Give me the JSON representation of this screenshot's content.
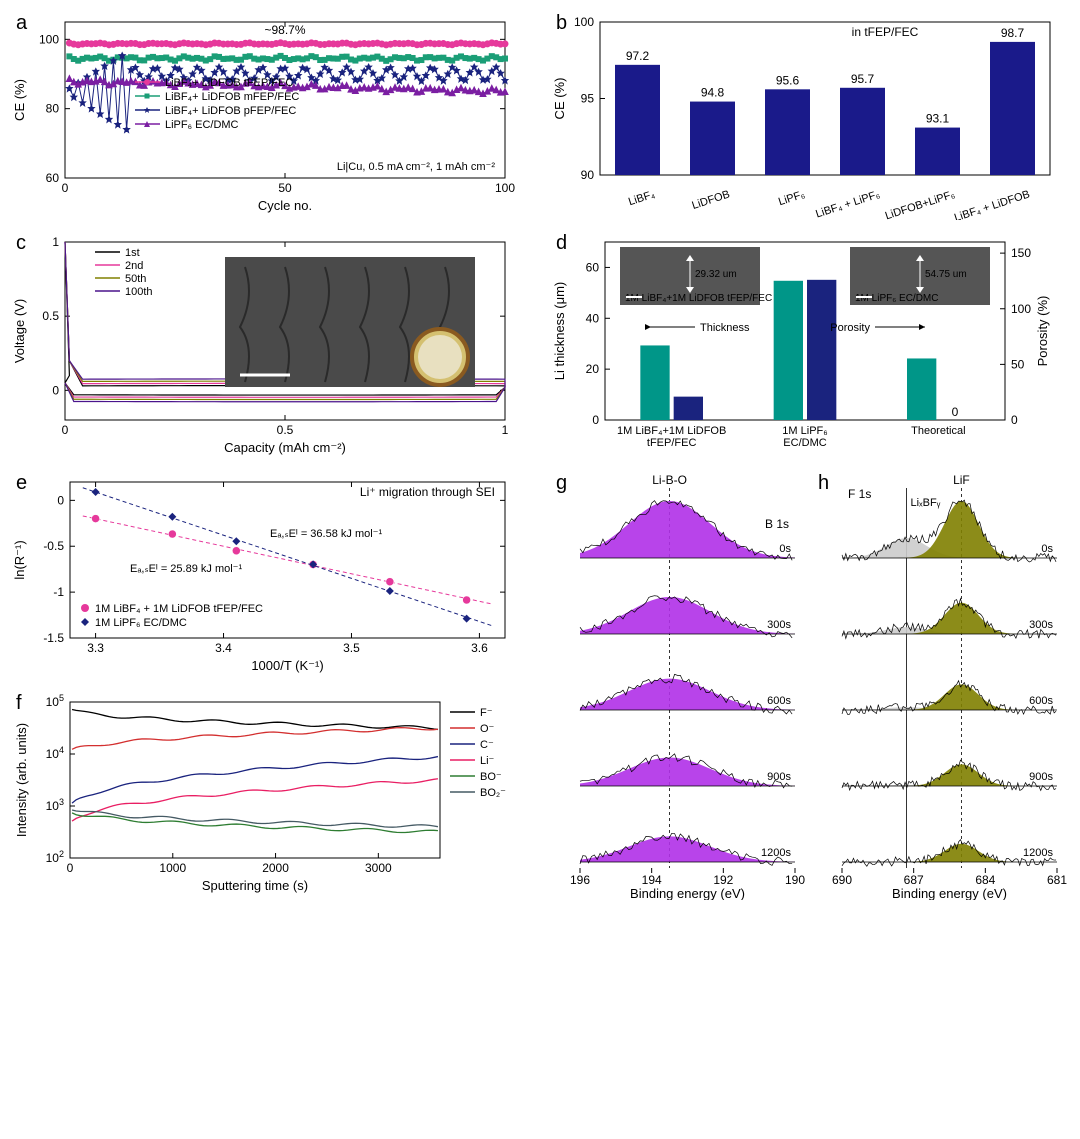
{
  "panels": {
    "a": {
      "label": "a",
      "xlabel": "Cycle no.",
      "ylabel": "CE (%)",
      "xlim": [
        0,
        100
      ],
      "xtick_step": 50,
      "ylim": [
        60,
        105
      ],
      "ytick_step": 20,
      "annotation": "~98.7%",
      "condition": "Li|Cu, 0.5 mA cm⁻², 1 mAh cm⁻²",
      "series": [
        {
          "name": "LiBF₄+ LiDFOB tFEP/FEC",
          "color": "#e6399b",
          "marker": "circle",
          "y_base": 98.7,
          "noise": 0.5
        },
        {
          "name": "LiBF₄+ LiDFOB mFEP/FEC",
          "color": "#1b9e77",
          "marker": "square",
          "y_base": 94.5,
          "noise": 1.2
        },
        {
          "name": "LiBF₄+ LiDFOB pFEP/FEC",
          "color": "#1a237e",
          "marker": "star",
          "y_base": 90,
          "noise": 8,
          "erratic": true
        },
        {
          "name": "LiPF₆ EC/DMC",
          "color": "#7b1fa2",
          "marker": "triangle",
          "y_base": 88,
          "noise": 1.5,
          "decline": true
        }
      ]
    },
    "b": {
      "label": "b",
      "ylabel": "CE (%)",
      "ylim": [
        90,
        100
      ],
      "ytick_step": 5,
      "title": "in tFEP/FEC",
      "bar_color": "#1a1a8a",
      "highlight_color": "#e6399b",
      "categories": [
        "LiBF₄",
        "LiDFOB",
        "LiPF₆",
        "LiBF₄ + LiPF₆",
        "LiDFOB+LiPF₆",
        "LiBF₄ + LiDFOB"
      ],
      "values": [
        97.2,
        94.8,
        95.6,
        95.7,
        93.1,
        98.7
      ],
      "highlight_index": 5
    },
    "c": {
      "label": "c",
      "xlabel": "Capacity (mAh cm⁻²)",
      "ylabel": "Voltage (V)",
      "xlim": [
        0.0,
        1.0
      ],
      "xtick_step": 0.5,
      "ylim": [
        -0.2,
        1.0
      ],
      "ytick_step": 0.5,
      "series": [
        {
          "name": "1st",
          "color": "#000000"
        },
        {
          "name": "2nd",
          "color": "#e6399b"
        },
        {
          "name": "50th",
          "color": "#808000"
        },
        {
          "name": "100th",
          "color": "#4a148c"
        }
      ]
    },
    "d": {
      "label": "d",
      "ylabel_left": "Li thickness (μm)",
      "ylabel_right": "Porosity (%)",
      "ylim_left": [
        0,
        70
      ],
      "ytick_left_step": 20,
      "ylim_right": [
        0,
        160
      ],
      "ytick_right_step": 50,
      "categories": [
        "1M LiBF₄+1M LiDFOB\ntFEP/FEC",
        "1M LiPF₆\nEC/DMC",
        "Theoretical"
      ],
      "thickness": [
        29.32,
        54.75,
        24.2
      ],
      "porosity": [
        21,
        126,
        0
      ],
      "thickness_color": "#009688",
      "porosity_color": "#1a237e",
      "arrows": {
        "left": "Thickness",
        "right": "Porosity"
      },
      "inset_left_label": "29.32 um",
      "inset_right_label": "54.75 um",
      "inset_left_caption": "1M LiBF₄+1M LiDFOB tFEP/FEC",
      "inset_right_caption": "1M LiPF₆ EC/DMC",
      "zero_label": "0"
    },
    "e": {
      "label": "e",
      "xlabel": "1000/T (K⁻¹)",
      "ylabel": "ln(R⁻¹)",
      "xlim": [
        3.28,
        3.62
      ],
      "xticks": [
        3.3,
        3.4,
        3.5,
        3.6
      ],
      "ylim": [
        -1.5,
        0.2
      ],
      "yticks": [
        -1.5,
        -1.0,
        -0.5,
        0.0
      ],
      "title": "Li⁺ migration through SEI",
      "series": [
        {
          "name": "1M LiBF₄ + 1M LiDFOB tFEP/FEC",
          "color": "#e6399b",
          "marker": "circle",
          "slope": -3.0,
          "intercept": 9.7,
          "ea_label": "Eₐ,ₛEᴵ = 25.89 kJ mol⁻¹"
        },
        {
          "name": "1M LiPF₆ EC/DMC",
          "color": "#1a237e",
          "marker": "diamond",
          "slope": -4.7,
          "intercept": 15.6,
          "ea_label": "Eₐ,ₛEᴵ = 36.58 kJ mol⁻¹"
        }
      ]
    },
    "f": {
      "label": "f",
      "xlabel": "Sputtering time (s)",
      "ylabel": "Intensity (arb. units)",
      "xlim": [
        0,
        3600
      ],
      "xtick_step": 1000,
      "ylim_log": [
        2,
        5
      ],
      "series": [
        {
          "name": "F⁻",
          "color": "#000000",
          "start": 4.9,
          "end": 4.5
        },
        {
          "name": "O⁻",
          "color": "#d32f2f",
          "start": 4.0,
          "end": 4.5
        },
        {
          "name": "C⁻",
          "color": "#1a237e",
          "start": 2.9,
          "end": 3.95
        },
        {
          "name": "Li⁻",
          "color": "#e91e63",
          "start": 2.6,
          "end": 3.5
        },
        {
          "name": "BO⁻",
          "color": "#2e7d32",
          "start": 2.95,
          "end": 2.5
        },
        {
          "name": "BO₂⁻",
          "color": "#455a64",
          "start": 3.0,
          "end": 2.6
        }
      ]
    },
    "g": {
      "label": "g",
      "xlabel": "Binding energy (eV)",
      "xlim": [
        196,
        190
      ],
      "xticks": [
        196,
        194,
        192,
        190
      ],
      "title_top": "Li-B-O",
      "corner_label": "B 1s",
      "peak_center": 193.5,
      "fill_color": "#b030e8",
      "rows": [
        "0s",
        "300s",
        "600s",
        "900s",
        "1200s"
      ],
      "intensity": [
        1.0,
        0.65,
        0.55,
        0.5,
        0.45
      ]
    },
    "h": {
      "label": "h",
      "xlabel": "Binding energy (eV)",
      "xlim": [
        690,
        681
      ],
      "xticks": [
        690,
        687,
        684,
        681
      ],
      "title_top": "LiF",
      "corner_label": "F 1s",
      "sub_peak_label": "LiₓBFᵧ",
      "peak1_center": 685.0,
      "peak1_color": "#808000",
      "peak2_center": 687.3,
      "peak2_color": "#cccccc",
      "rows": [
        "0s",
        "300s",
        "600s",
        "900s",
        "1200s"
      ],
      "intensity1": [
        1.0,
        0.55,
        0.45,
        0.38,
        0.32
      ],
      "intensity2": [
        0.35,
        0.12,
        0.05,
        0.02,
        0.01
      ]
    }
  },
  "font": {
    "base": 12,
    "label": 13
  }
}
